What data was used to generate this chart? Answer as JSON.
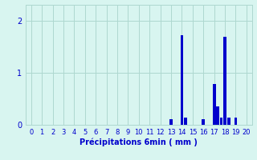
{
  "bar_color": "#0000cc",
  "bg_color": "#d8f5f0",
  "grid_color": "#aed8d0",
  "text_color": "#0000cc",
  "xlabel": "Précipitations 6min ( mm )",
  "ylim": [
    0,
    2.3
  ],
  "xlim": [
    -0.5,
    20.5
  ],
  "yticks": [
    0,
    1,
    2
  ],
  "xticks": [
    0,
    1,
    2,
    3,
    4,
    5,
    6,
    7,
    8,
    9,
    10,
    11,
    12,
    13,
    14,
    15,
    16,
    17,
    18,
    19,
    20
  ],
  "bars": [
    [
      13.0,
      0.1
    ],
    [
      14.0,
      1.72
    ],
    [
      14.35,
      0.14
    ],
    [
      16.0,
      0.1
    ],
    [
      17.0,
      0.78
    ],
    [
      17.35,
      0.36
    ],
    [
      17.65,
      0.14
    ],
    [
      18.0,
      1.68
    ],
    [
      18.35,
      0.14
    ],
    [
      19.0,
      0.14
    ]
  ],
  "bar_width": 0.28,
  "tick_fontsize": 6,
  "xlabel_fontsize": 7
}
